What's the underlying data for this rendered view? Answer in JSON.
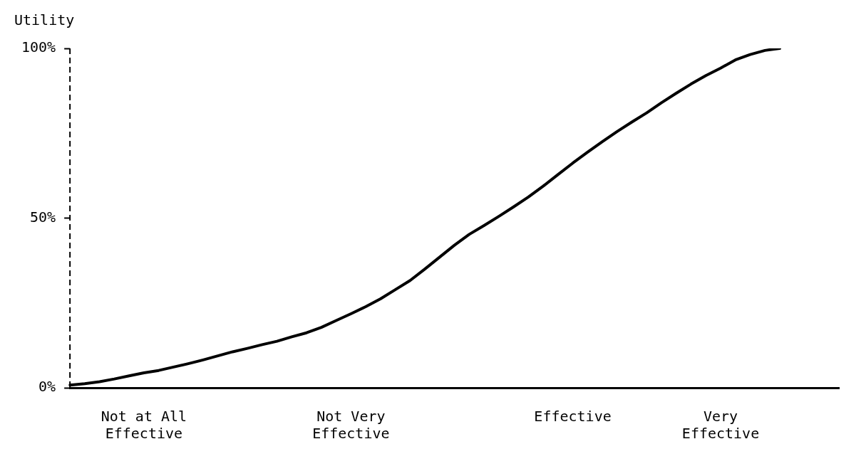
{
  "chart_data": {
    "type": "line",
    "ylabel": "Utility",
    "ylim": [
      0,
      100
    ],
    "yticks": [
      {
        "value": 0,
        "label": "0%"
      },
      {
        "value": 50,
        "label": "50%"
      },
      {
        "value": 100,
        "label": "100%"
      }
    ],
    "categories": [
      null,
      null,
      null,
      null,
      null,
      "Not at All\nEffective",
      null,
      null,
      null,
      null,
      null,
      null,
      null,
      null,
      null,
      null,
      null,
      null,
      null,
      "Not Very\nEffective",
      null,
      null,
      null,
      null,
      null,
      null,
      null,
      null,
      null,
      null,
      null,
      null,
      null,
      null,
      "Effective",
      null,
      null,
      null,
      null,
      null,
      null,
      null,
      null,
      null,
      "Very\nEffective",
      null,
      null,
      null,
      null,
      null,
      null,
      null,
      null
    ],
    "series": [
      {
        "color": "#000000",
        "values": [
          0.8,
          1.2,
          1.8,
          2.6,
          3.5,
          4.4,
          5.1,
          6.1,
          7.1,
          8.2,
          9.4,
          10.6,
          11.6,
          12.7,
          13.7,
          15,
          16.2,
          17.8,
          19.8,
          21.8,
          23.9,
          26.2,
          28.9,
          31.6,
          35,
          38.5,
          42,
          45.2,
          47.8,
          50.5,
          53.3,
          56.2,
          59.4,
          62.8,
          66.2,
          69.4,
          72.5,
          75.5,
          78.3,
          81,
          84,
          86.8,
          89.5,
          92,
          94.2,
          96.6,
          98.2,
          99.4,
          100,
          null,
          null,
          null,
          null
        ]
      }
    ],
    "grid": false,
    "legend": false,
    "marker": "none",
    "line_style": "solid"
  }
}
